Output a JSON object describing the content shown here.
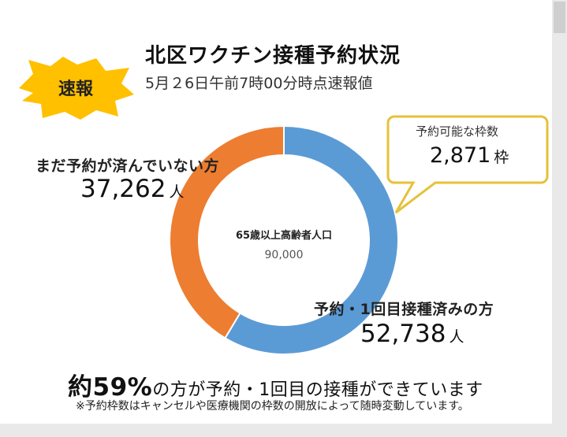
{
  "header": {
    "badge": "速報",
    "title": "北区ワクチン接種予約状況",
    "subtitle": "5月２6日午前7時00分時点速報値"
  },
  "colors": {
    "booked": "#5b9bd5",
    "not_booked": "#ed7d31",
    "badge": "#ffc000",
    "callout_border": "#e6c13a"
  },
  "chart_data": {
    "type": "pie",
    "center_label": "65歳以上高齢者人口",
    "total_label": "90,000",
    "total": 90000,
    "slices": [
      {
        "name": "予約・1回目接種済みの方",
        "value": 52738,
        "value_label": "52,738",
        "unit": "人"
      },
      {
        "name": "まだ予約が済んでいない方",
        "value": 37262,
        "value_label": "37,262",
        "unit": "人"
      }
    ]
  },
  "callout": {
    "label": "予約可能な枠数",
    "value": "2,871",
    "unit": "枠"
  },
  "summary": {
    "prefix": "約",
    "percent": "59%",
    "rest": "の方が予約・1回目の接種ができています"
  },
  "note": "※予約枠数はキャンセルや医療機関の枠数の開放によって随時変動しています。"
}
